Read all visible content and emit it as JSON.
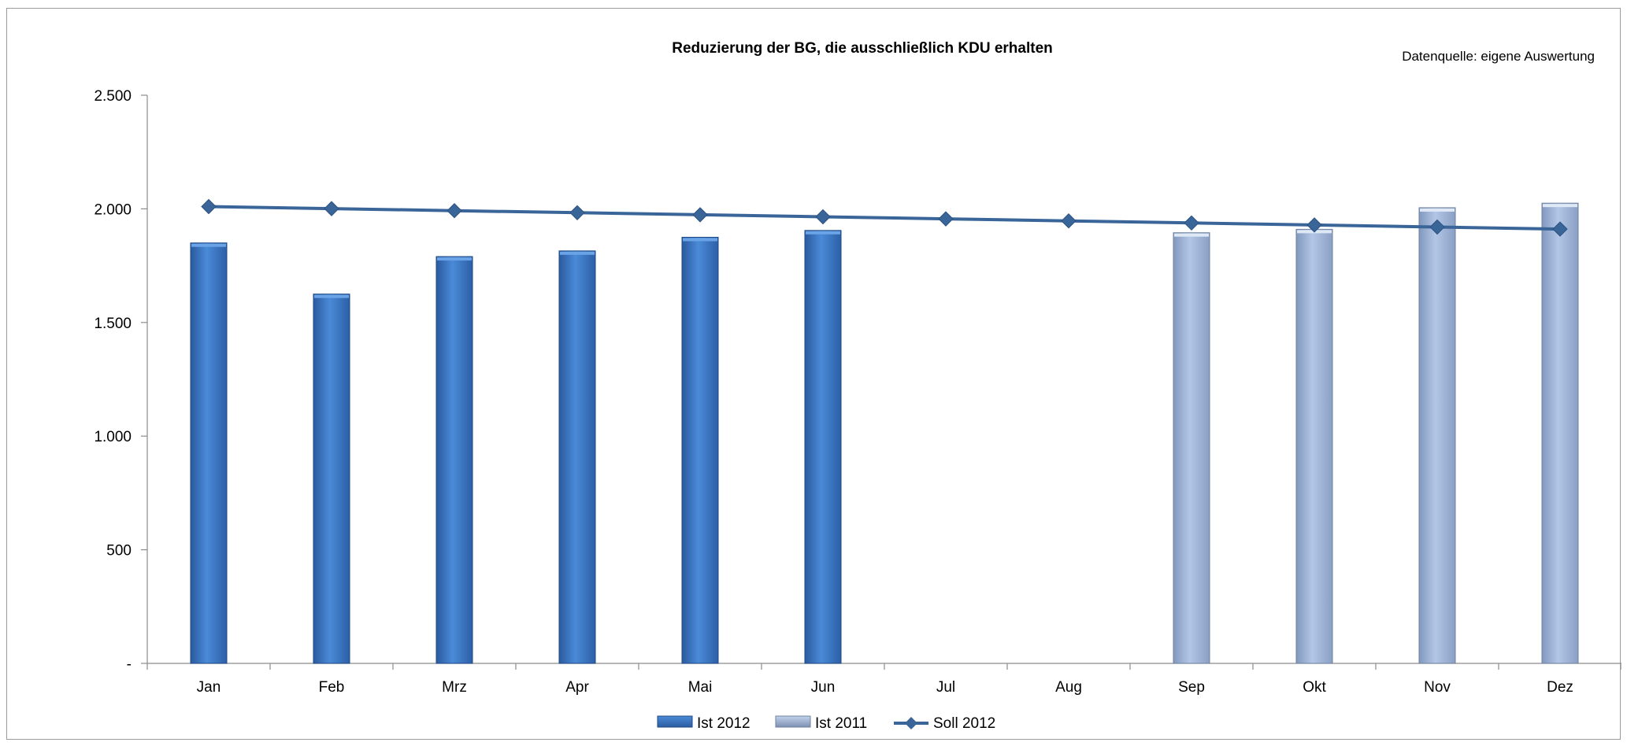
{
  "chart_data": {
    "type": "bar",
    "title": "Reduzierung der BG, die ausschließlich KDU erhalten",
    "annotation": "Datenquelle: eigene Auswertung",
    "categories": [
      "Jan",
      "Feb",
      "Mrz",
      "Apr",
      "Mai",
      "Jun",
      "Jul",
      "Aug",
      "Sep",
      "Okt",
      "Nov",
      "Dez"
    ],
    "ylim": [
      0,
      2500
    ],
    "yticks": [
      0,
      500,
      1000,
      1500,
      2000,
      2500
    ],
    "ytick_labels": [
      "-",
      "500",
      "1.000",
      "1.500",
      "2.000",
      "2.500"
    ],
    "grid": false,
    "legend_position": "bottom",
    "series": [
      {
        "name": "Ist 2012",
        "kind": "bar",
        "color": "#3b78c8",
        "values": [
          1850,
          1625,
          1790,
          1815,
          1875,
          1905,
          null,
          null,
          null,
          null,
          null,
          null
        ]
      },
      {
        "name": "Ist 2011",
        "kind": "bar",
        "color": "#9db3d8",
        "values": [
          null,
          null,
          null,
          null,
          null,
          null,
          null,
          null,
          1895,
          1910,
          2005,
          2025
        ]
      },
      {
        "name": "Soll 2012",
        "kind": "line",
        "color": "#3a6599",
        "values": [
          2010,
          2001,
          1992,
          1983,
          1974,
          1965,
          1956,
          1947,
          1938,
          1929,
          1920,
          1911
        ]
      }
    ]
  }
}
